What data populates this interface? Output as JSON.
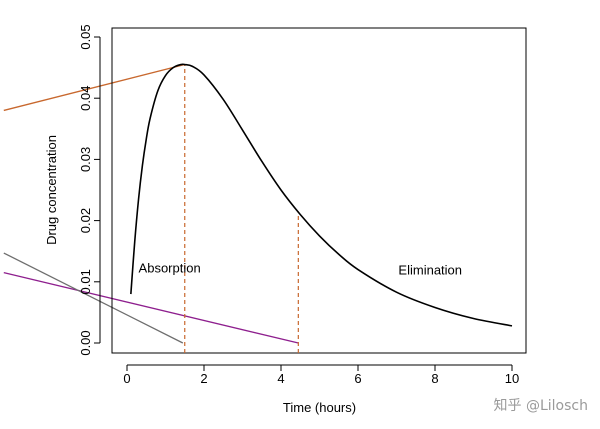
{
  "chart_data": {
    "type": "line",
    "title": "",
    "xlabel": "Time (hours)",
    "ylabel": "Drug concentration",
    "xlim": [
      0,
      10
    ],
    "ylim": [
      0,
      0.05
    ],
    "xticks": [
      0,
      2,
      4,
      6,
      8,
      10
    ],
    "yticks": [
      0.0,
      0.01,
      0.02,
      0.03,
      0.04,
      0.05
    ],
    "ytick_labels": [
      "0.00",
      "0.01",
      "0.02",
      "0.03",
      "0.04",
      "0.05"
    ],
    "grid": false,
    "series": [
      {
        "name": "concentration",
        "color": "#000000",
        "x": [
          0.1,
          0.2,
          0.3,
          0.4,
          0.5,
          0.6,
          0.8,
          1.0,
          1.2,
          1.4,
          1.5,
          1.7,
          2.0,
          2.5,
          3.0,
          3.5,
          4.0,
          4.5,
          5.0,
          5.5,
          6.0,
          7.0,
          8.0,
          9.0,
          10.0
        ],
        "y": [
          0.008,
          0.0165,
          0.0235,
          0.029,
          0.0333,
          0.0367,
          0.0412,
          0.0437,
          0.045,
          0.0455,
          0.0455,
          0.0452,
          0.0438,
          0.0398,
          0.0348,
          0.0297,
          0.025,
          0.021,
          0.0175,
          0.0145,
          0.012,
          0.0083,
          0.0058,
          0.004,
          0.0028
        ]
      }
    ],
    "construction_lines": [
      {
        "name": "absorption-tangent-orange",
        "color": "#c8682e",
        "points": [
          [
            -3.2,
            0.038
          ],
          [
            1.5,
            0.0455
          ]
        ]
      },
      {
        "name": "elimination-line-purple",
        "color": "#8e1f8e",
        "points": [
          [
            -3.2,
            0.0115
          ],
          [
            4.45,
            0.0
          ]
        ]
      },
      {
        "name": "gray-line",
        "color": "#6e6e6e",
        "points": [
          [
            -3.2,
            0.0147
          ],
          [
            1.45,
            0.0
          ]
        ]
      }
    ],
    "vertical_markers": [
      {
        "name": "tmax-marker",
        "x": 1.5,
        "y_top": 0.0455,
        "color": "#c8682e"
      },
      {
        "name": "elimination-marker",
        "x": 4.45,
        "y_top": 0.0215,
        "color": "#c8682e"
      }
    ],
    "annotations": [
      {
        "name": "absorption-label",
        "text": "Absorption",
        "x": 0.3,
        "y": 0.0115
      },
      {
        "name": "elimination-label",
        "text": "Elimination",
        "x": 7.05,
        "y": 0.0112
      }
    ]
  },
  "watermark": "知乎 @Lilosch"
}
